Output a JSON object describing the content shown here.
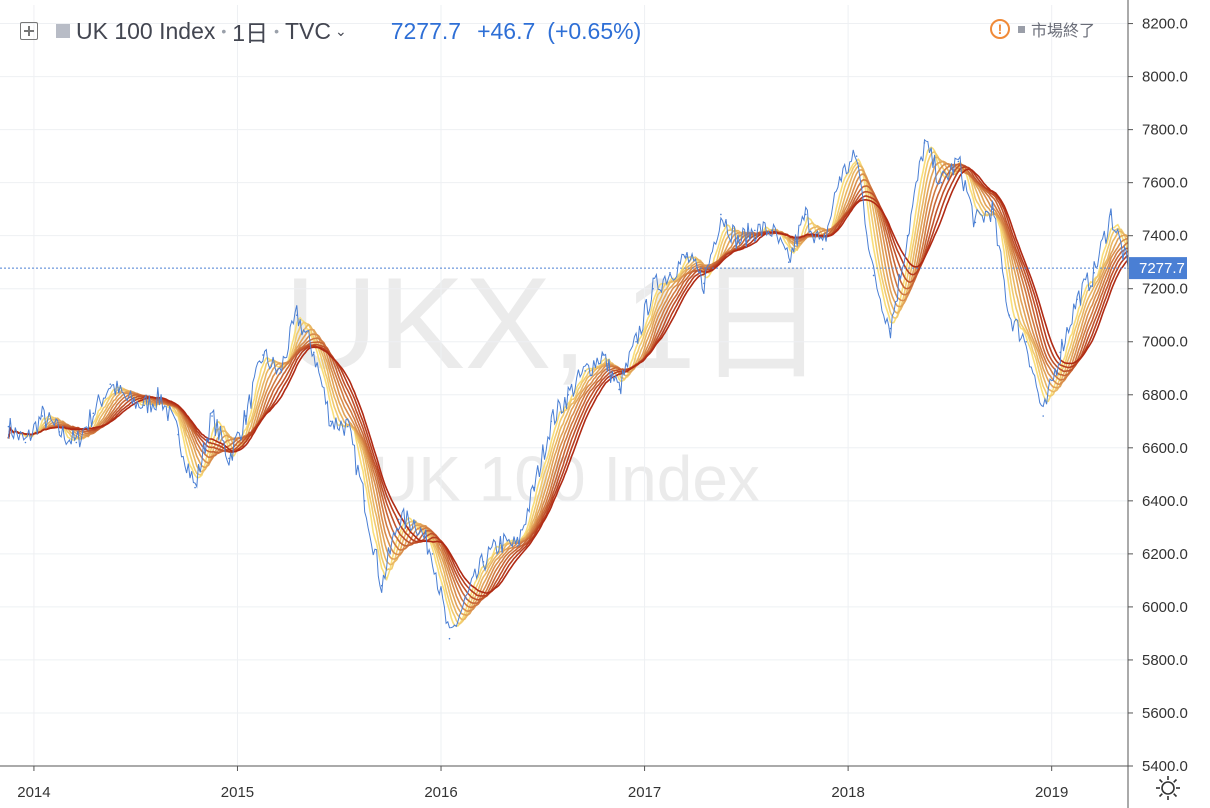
{
  "header": {
    "symbol": "UK 100 Index",
    "interval": "1日",
    "exchange": "TVC",
    "price": "7277.7",
    "change": "+46.7",
    "change_pct": "(+0.65%)"
  },
  "status": {
    "market_status": "市場終了"
  },
  "watermark": {
    "line1": "UKX, 1日",
    "line2": "UK 100 Index"
  },
  "colors": {
    "price_line": "#4a7fd4",
    "ribbon_fast": "#f9de7a",
    "ribbon_slow": "#b02a14",
    "axis_text": "#333333",
    "last_price_label_bg": "#4a7fd4"
  },
  "icons": [
    "add-symbol-icon",
    "flag-icon",
    "chevron-down-icon",
    "warning-icon",
    "settings-icon"
  ],
  "chart_data": {
    "type": "line",
    "price_axis": {
      "ticks": [
        "8200.0",
        "8000.0",
        "7800.0",
        "7600.0",
        "7400.0",
        "7200.0",
        "7000.0",
        "6800.0",
        "6600.0",
        "6400.0",
        "6200.0",
        "6000.0",
        "5800.0",
        "5600.0",
        "5400.0"
      ],
      "range": [
        5400,
        8270
      ]
    },
    "time_axis": {
      "ticks": [
        "2014",
        "2015",
        "2016",
        "2017",
        "2018",
        "2019"
      ],
      "range": [
        "2013-11",
        "2019-05"
      ]
    },
    "last_value": "7277.7",
    "grid": true,
    "series": [
      {
        "x": [
          "2013-11",
          "2013-12",
          "2014-01",
          "2014-02",
          "2014-03",
          "2014-04",
          "2014-05",
          "2014-06",
          "2014-07",
          "2014-08",
          "2014-09",
          "2014-10",
          "2014-11",
          "2014-12",
          "2015-01",
          "2015-02",
          "2015-03",
          "2015-04",
          "2015-05",
          "2015-06",
          "2015-07",
          "2015-08",
          "2015-09",
          "2015-10",
          "2015-11",
          "2015-12",
          "2016-01",
          "2016-02",
          "2016-03",
          "2016-04",
          "2016-05",
          "2016-06",
          "2016-07",
          "2016-08",
          "2016-09",
          "2016-10",
          "2016-11",
          "2016-12",
          "2017-01",
          "2017-02",
          "2017-03",
          "2017-04",
          "2017-05",
          "2017-06",
          "2017-07",
          "2017-08",
          "2017-09",
          "2017-10",
          "2017-11",
          "2017-12",
          "2018-01",
          "2018-02",
          "2018-03",
          "2018-04",
          "2018-05",
          "2018-06",
          "2018-07",
          "2018-08",
          "2018-09",
          "2018-10",
          "2018-11",
          "2018-12",
          "2019-01",
          "2019-02",
          "2019-03",
          "2019-04",
          "2019-05"
        ],
        "values": [
          6680,
          6620,
          6720,
          6660,
          6620,
          6730,
          6840,
          6780,
          6760,
          6790,
          6650,
          6450,
          6720,
          6560,
          6720,
          6950,
          6880,
          7100,
          6960,
          6700,
          6680,
          6400,
          6080,
          6330,
          6320,
          6200,
          5880,
          6030,
          6170,
          6240,
          6230,
          6450,
          6700,
          6800,
          6890,
          6950,
          6820,
          7000,
          7200,
          7260,
          7320,
          7220,
          7480,
          7380,
          7420,
          7420,
          7300,
          7480,
          7350,
          7620,
          7700,
          7250,
          7050,
          7400,
          7750,
          7600,
          7680,
          7450,
          7500,
          7100,
          7000,
          6720,
          6960,
          7160,
          7260,
          7480,
          7277.7
        ]
      }
    ]
  }
}
